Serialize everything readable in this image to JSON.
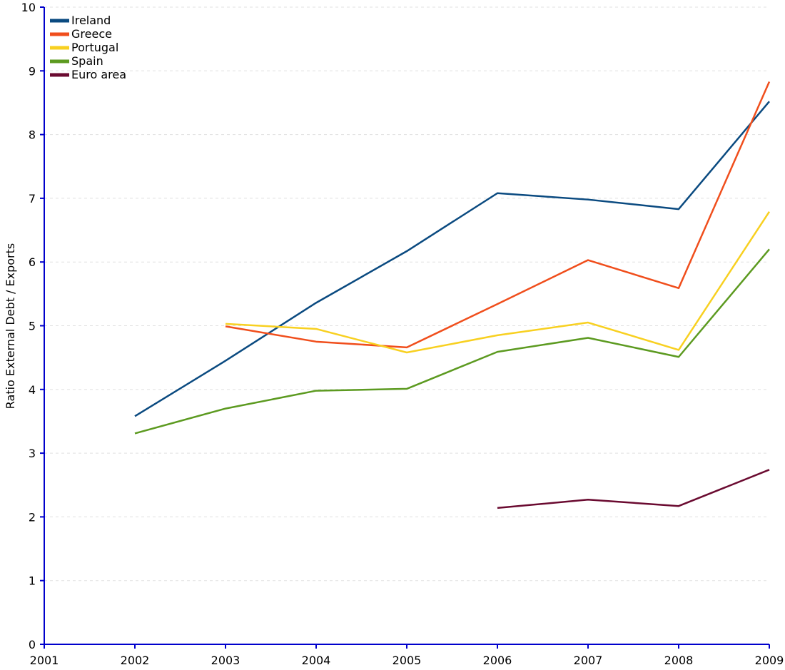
{
  "chart_data": {
    "type": "line",
    "title": "",
    "xlabel": "",
    "ylabel": "Ratio External Debt / Exports",
    "x": [
      "2001",
      "2002",
      "2003",
      "2004",
      "2005",
      "2006",
      "2007",
      "2008",
      "2009"
    ],
    "ylim": [
      0,
      10
    ],
    "yticks": [
      "0",
      "1",
      "2",
      "3",
      "4",
      "5",
      "6",
      "7",
      "8",
      "9",
      "10"
    ],
    "grid": "horizontal dashed",
    "legend": "top-left",
    "series": [
      {
        "name": "Ireland",
        "color": "#0a4a80",
        "values": [
          null,
          3.58,
          4.45,
          5.36,
          6.17,
          7.08,
          6.98,
          6.83,
          8.52
        ]
      },
      {
        "name": "Greece",
        "color": "#f04e1c",
        "values": [
          null,
          null,
          4.99,
          4.75,
          4.66,
          5.34,
          6.03,
          5.59,
          8.83
        ]
      },
      {
        "name": "Portugal",
        "color": "#f8d020",
        "values": [
          null,
          null,
          5.03,
          4.95,
          4.58,
          4.85,
          5.05,
          4.62,
          6.79
        ]
      },
      {
        "name": "Spain",
        "color": "#5c9a20",
        "values": [
          null,
          3.31,
          3.7,
          3.98,
          4.01,
          4.59,
          4.81,
          4.51,
          6.2
        ]
      },
      {
        "name": "Euro area",
        "color": "#6a0a30",
        "values": [
          null,
          null,
          null,
          null,
          null,
          2.14,
          2.27,
          2.17,
          2.74
        ]
      }
    ]
  }
}
